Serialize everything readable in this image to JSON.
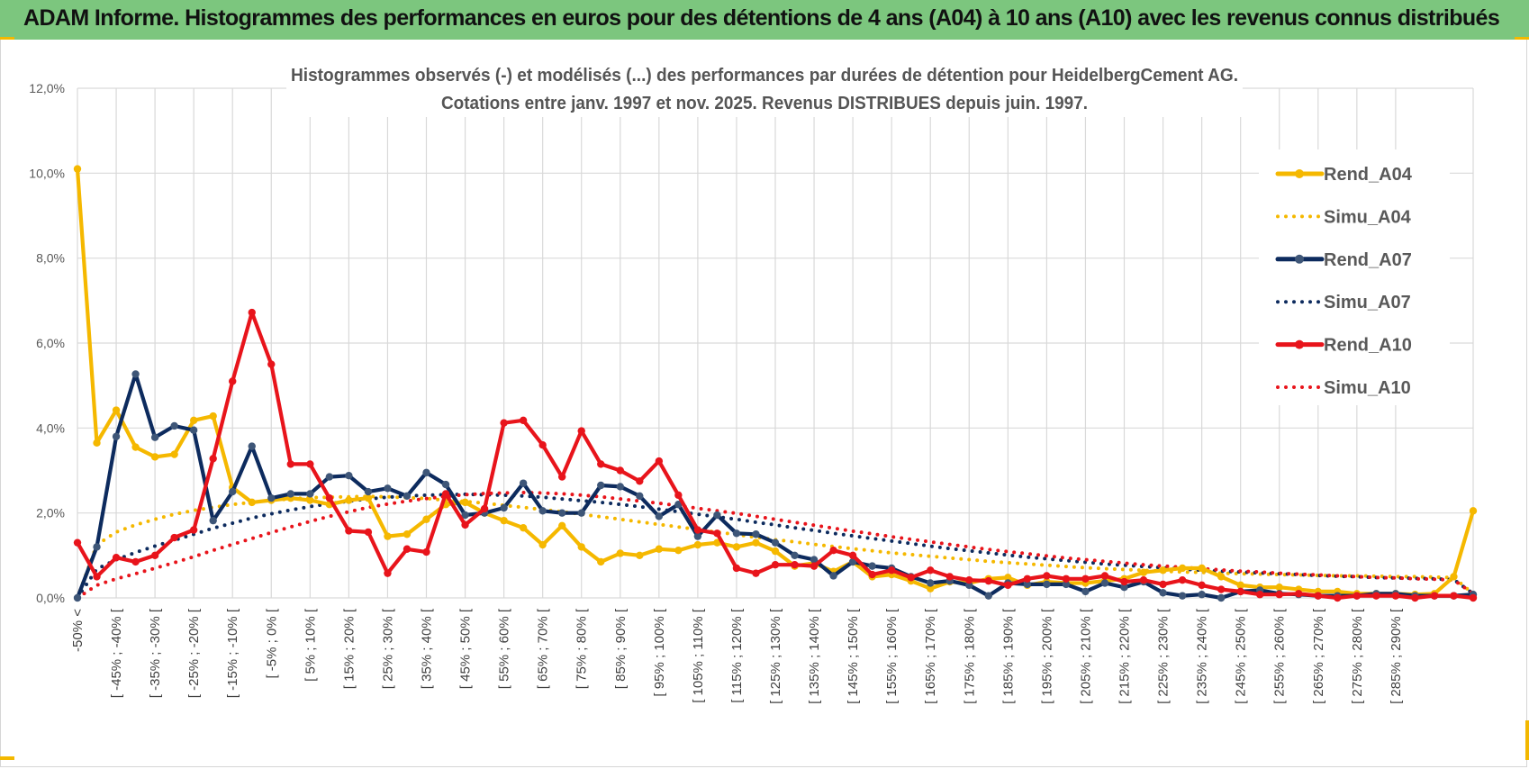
{
  "header": {
    "title": "ADAM Informe. Histogrammes des performances en euros pour des détentions de 4 ans (A04) à 10 ans (A10) avec les revenus connus distribués"
  },
  "colors": {
    "header_bg": "#7cc67e",
    "A04": "#f5b800",
    "A07": "#0d2b5e",
    "A10": "#e8141b",
    "grid": "#d9d9d9",
    "accent": "#f3b800"
  },
  "chart_data": {
    "type": "line",
    "title_lines": [
      "Histogrammes observés (-) et modélisés (...) des performances par durées de détention pour HeidelbergCement AG.",
      "Cotations entre janv. 1997 et nov. 2025. Revenus DISTRIBUES depuis juin. 1997."
    ],
    "ylim": [
      0,
      12
    ],
    "yticks": [
      "0,0%",
      "2,0%",
      "4,0%",
      "6,0%",
      "8,0%",
      "10,0%",
      "12,0%"
    ],
    "x_labels": [
      "-50% <",
      "[ -45% ; -40% [",
      "[ -35% ; -30% [",
      "[ -25% ; -20% [",
      "[ -15% ; -10% [",
      "[ -5% ; 0% [",
      "[ 5% ; 10% [",
      "[ 15% ; 20% [",
      "[ 25% ; 30% [",
      "[ 35% ; 40% [",
      "[ 45% ; 50% [",
      "[ 55% ; 60% [",
      "[ 65% ; 70% [",
      "[ 75% ; 80% [",
      "[ 85% ; 90% [",
      "[ 95% ; 100% [",
      "[ 105% ; 110% [",
      "[ 115% ; 120% [",
      "[ 125% ; 130% [",
      "[ 135% ; 140% [",
      "[ 145% ; 150% [",
      "[ 155% ; 160% [",
      "[ 165% ; 170% [",
      "[ 175% ; 180% [",
      "[ 185% ; 190% [",
      "[ 195% ; 200% [",
      "[ 205% ; 210% [",
      "[ 215% ; 220% [",
      "[ 225% ; 230% [",
      "[ 235% ; 240% [",
      "[ 245% ; 250% [",
      "[ 255% ; 260% [",
      "[ 265% ; 270% [",
      "[ 275% ; 280% [",
      "[ 285% ; 290% ["
    ],
    "series": [
      {
        "name": "Rend_A04",
        "style": "solid",
        "color": "#f5b800",
        "values": [
          10.1,
          3.65,
          4.42,
          3.55,
          3.32,
          3.38,
          4.18,
          4.28,
          2.6,
          2.25,
          2.3,
          2.35,
          2.3,
          2.2,
          2.3,
          2.35,
          1.45,
          1.5,
          1.85,
          2.2,
          2.25,
          2.0,
          1.82,
          1.65,
          1.25,
          1.7,
          1.2,
          0.85,
          1.05,
          1.0,
          1.15,
          1.12,
          1.25,
          1.3,
          1.2,
          1.3,
          1.1,
          0.75,
          0.82,
          0.62,
          0.85,
          0.5,
          0.55,
          0.4,
          0.22,
          0.38,
          0.35,
          0.45,
          0.48,
          0.3,
          0.38,
          0.35,
          0.35,
          0.4,
          0.45,
          0.6,
          0.65,
          0.7,
          0.7,
          0.5,
          0.3,
          0.25,
          0.25,
          0.2,
          0.15,
          0.15,
          0.1,
          0.1,
          0.1,
          0.08,
          0.1,
          0.5,
          2.05
        ]
      },
      {
        "name": "Simu_A04",
        "style": "dotted",
        "color": "#f5b800",
        "values": [
          0.0,
          1.25,
          1.55,
          1.72,
          1.85,
          1.97,
          2.06,
          2.13,
          2.2,
          2.25,
          2.3,
          2.33,
          2.36,
          2.37,
          2.38,
          2.39,
          2.38,
          2.36,
          2.34,
          2.3,
          2.27,
          2.23,
          2.18,
          2.13,
          2.08,
          2.03,
          1.97,
          1.91,
          1.85,
          1.79,
          1.73,
          1.67,
          1.61,
          1.55,
          1.49,
          1.43,
          1.37,
          1.32,
          1.26,
          1.21,
          1.16,
          1.11,
          1.06,
          1.02,
          0.98,
          0.94,
          0.9,
          0.86,
          0.83,
          0.8,
          0.77,
          0.74,
          0.71,
          0.69,
          0.67,
          0.65,
          0.63,
          0.61,
          0.6,
          0.58,
          0.57,
          0.56,
          0.55,
          0.54,
          0.53,
          0.52,
          0.52,
          0.51,
          0.5,
          0.5,
          0.49,
          0.48,
          0.1
        ]
      },
      {
        "name": "Rend_A07",
        "style": "solid",
        "color": "#0d2b5e",
        "values": [
          0.0,
          1.2,
          3.8,
          5.27,
          3.78,
          4.05,
          3.95,
          1.82,
          2.5,
          3.57,
          2.35,
          2.45,
          2.45,
          2.85,
          2.88,
          2.5,
          2.58,
          2.4,
          2.95,
          2.67,
          1.95,
          2.0,
          2.12,
          2.7,
          2.05,
          2.0,
          2.0,
          2.65,
          2.62,
          2.4,
          1.92,
          2.2,
          1.45,
          1.95,
          1.52,
          1.5,
          1.3,
          1.0,
          0.9,
          0.52,
          0.85,
          0.75,
          0.7,
          0.5,
          0.35,
          0.4,
          0.3,
          0.05,
          0.35,
          0.32,
          0.32,
          0.32,
          0.15,
          0.35,
          0.25,
          0.38,
          0.12,
          0.05,
          0.08,
          0.0,
          0.15,
          0.18,
          0.1,
          0.08,
          0.05,
          0.05,
          0.05,
          0.1,
          0.1,
          0.05,
          0.05,
          0.05,
          0.08
        ]
      },
      {
        "name": "Simu_A07",
        "style": "dotted",
        "color": "#0d2b5e",
        "values": [
          0.0,
          0.68,
          0.9,
          1.07,
          1.22,
          1.36,
          1.5,
          1.64,
          1.76,
          1.88,
          1.98,
          2.07,
          2.15,
          2.22,
          2.28,
          2.33,
          2.37,
          2.4,
          2.42,
          2.43,
          2.44,
          2.43,
          2.42,
          2.4,
          2.37,
          2.33,
          2.29,
          2.25,
          2.2,
          2.15,
          2.09,
          2.03,
          1.97,
          1.91,
          1.85,
          1.78,
          1.72,
          1.65,
          1.59,
          1.52,
          1.46,
          1.4,
          1.34,
          1.28,
          1.22,
          1.16,
          1.11,
          1.06,
          1.01,
          0.96,
          0.92,
          0.88,
          0.84,
          0.8,
          0.77,
          0.74,
          0.71,
          0.68,
          0.65,
          0.63,
          0.61,
          0.59,
          0.57,
          0.55,
          0.53,
          0.51,
          0.5,
          0.48,
          0.47,
          0.46,
          0.45,
          0.43,
          0.1
        ]
      },
      {
        "name": "Rend_A10",
        "style": "solid",
        "color": "#e8141b",
        "values": [
          1.3,
          0.5,
          0.95,
          0.85,
          1.0,
          1.42,
          1.6,
          3.28,
          5.1,
          6.72,
          5.5,
          3.15,
          3.15,
          2.35,
          1.58,
          1.55,
          0.58,
          1.15,
          1.08,
          2.45,
          1.72,
          2.1,
          4.12,
          4.18,
          3.6,
          2.85,
          3.93,
          3.15,
          3.0,
          2.75,
          3.22,
          2.42,
          1.6,
          1.52,
          0.7,
          0.58,
          0.78,
          0.78,
          0.75,
          1.12,
          1.0,
          0.55,
          0.65,
          0.48,
          0.65,
          0.5,
          0.42,
          0.4,
          0.3,
          0.45,
          0.52,
          0.45,
          0.45,
          0.52,
          0.38,
          0.42,
          0.32,
          0.42,
          0.3,
          0.2,
          0.15,
          0.08,
          0.08,
          0.1,
          0.05,
          0.0,
          0.05,
          0.05,
          0.05,
          0.0,
          0.05,
          0.05,
          0.0
        ]
      },
      {
        "name": "Simu_A10",
        "style": "dotted",
        "color": "#e8141b",
        "values": [
          0.0,
          0.3,
          0.45,
          0.57,
          0.7,
          0.83,
          0.97,
          1.12,
          1.26,
          1.4,
          1.54,
          1.67,
          1.8,
          1.92,
          2.03,
          2.13,
          2.21,
          2.28,
          2.34,
          2.39,
          2.43,
          2.46,
          2.47,
          2.48,
          2.47,
          2.45,
          2.42,
          2.38,
          2.33,
          2.28,
          2.23,
          2.17,
          2.11,
          2.05,
          1.99,
          1.92,
          1.85,
          1.78,
          1.71,
          1.64,
          1.57,
          1.51,
          1.44,
          1.38,
          1.32,
          1.26,
          1.2,
          1.14,
          1.09,
          1.04,
          0.99,
          0.94,
          0.9,
          0.86,
          0.82,
          0.78,
          0.75,
          0.72,
          0.69,
          0.66,
          0.63,
          0.61,
          0.58,
          0.56,
          0.54,
          0.52,
          0.5,
          0.48,
          0.47,
          0.45,
          0.44,
          0.42,
          0.1
        ]
      }
    ],
    "legend": {
      "position": "right",
      "entries": [
        "Rend_A04",
        "Simu_A04",
        "Rend_A07",
        "Simu_A07",
        "Rend_A10",
        "Simu_A10"
      ]
    }
  }
}
